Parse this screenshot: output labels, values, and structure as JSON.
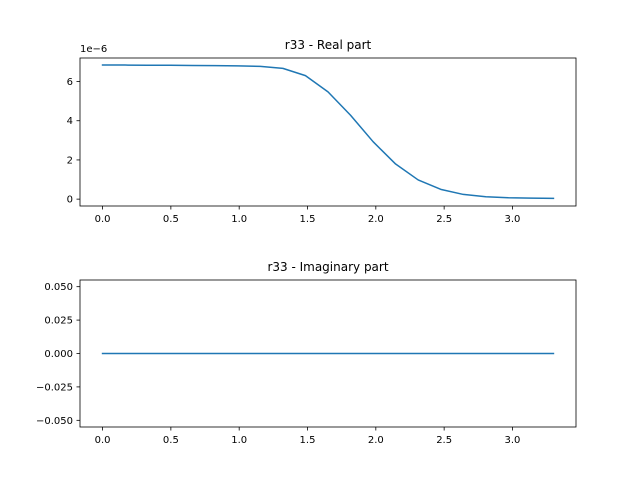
{
  "chart_data": [
    {
      "type": "line",
      "title": "r33 - Real part",
      "xlabel": "",
      "ylabel": "",
      "y_offset_label": "1e−6",
      "xlim": [
        -0.165,
        3.465
      ],
      "ylim": [
        -0.35,
        7.2
      ],
      "x_ticks": [
        0.0,
        0.5,
        1.0,
        1.5,
        2.0,
        2.5,
        3.0
      ],
      "x_tick_labels": [
        "0.0",
        "0.5",
        "1.0",
        "1.5",
        "2.0",
        "2.5",
        "3.0"
      ],
      "y_ticks": [
        0,
        2,
        4,
        6
      ],
      "y_tick_labels": [
        "0",
        "2",
        "4",
        "6"
      ],
      "grid": false,
      "color": "#1f77b4",
      "series": [
        {
          "x": [
            0.0,
            0.165,
            0.33,
            0.495,
            0.66,
            0.825,
            0.99,
            1.155,
            1.32,
            1.485,
            1.65,
            1.815,
            1.98,
            2.145,
            2.31,
            2.475,
            2.64,
            2.805,
            2.97,
            3.135,
            3.3
          ],
          "values": [
            6.84,
            6.84,
            6.83,
            6.83,
            6.82,
            6.81,
            6.8,
            6.77,
            6.67,
            6.3,
            5.47,
            4.28,
            2.93,
            1.79,
            0.98,
            0.5,
            0.24,
            0.12,
            0.07,
            0.05,
            0.04
          ]
        }
      ]
    },
    {
      "type": "line",
      "title": "r33 - Imaginary part",
      "xlabel": "",
      "ylabel": "",
      "xlim": [
        -0.165,
        3.465
      ],
      "ylim": [
        -0.055,
        0.055
      ],
      "x_ticks": [
        0.0,
        0.5,
        1.0,
        1.5,
        2.0,
        2.5,
        3.0
      ],
      "x_tick_labels": [
        "0.0",
        "0.5",
        "1.0",
        "1.5",
        "2.0",
        "2.5",
        "3.0"
      ],
      "y_ticks": [
        -0.05,
        -0.025,
        0.0,
        0.025,
        0.05
      ],
      "y_tick_labels": [
        "−0.050",
        "−0.025",
        "0.000",
        "0.025",
        "0.050"
      ],
      "grid": false,
      "color": "#1f77b4",
      "series": [
        {
          "x": [
            0.0,
            0.165,
            0.33,
            0.495,
            0.66,
            0.825,
            0.99,
            1.155,
            1.32,
            1.485,
            1.65,
            1.815,
            1.98,
            2.145,
            2.31,
            2.475,
            2.64,
            2.805,
            2.97,
            3.135,
            3.3
          ],
          "values": [
            0,
            0,
            0,
            0,
            0,
            0,
            0,
            0,
            0,
            0,
            0,
            0,
            0,
            0,
            0,
            0,
            0,
            0,
            0,
            0,
            0
          ]
        }
      ]
    }
  ]
}
